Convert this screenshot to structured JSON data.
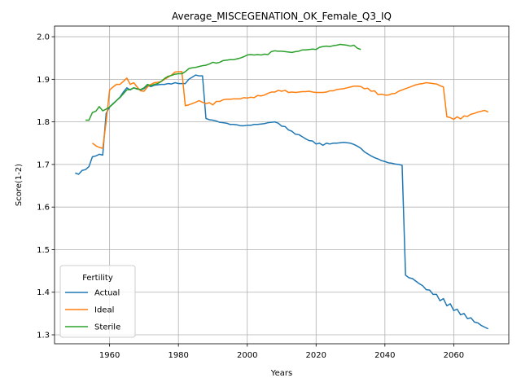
{
  "chart_data": {
    "type": "line",
    "title": "Average_MISCEGENATION_OK_Female_Q3_IQ",
    "xlabel": "Years",
    "ylabel": "Score(1-2)",
    "x": [
      1950,
      1951,
      1952,
      1953,
      1954,
      1955,
      1956,
      1957,
      1958,
      1959,
      1960,
      1961,
      1962,
      1963,
      1964,
      1965,
      1966,
      1967,
      1968,
      1969,
      1970,
      1971,
      1972,
      1973,
      1974,
      1975,
      1976,
      1977,
      1978,
      1979,
      1980,
      1981,
      1982,
      1983,
      1984,
      1985,
      1986,
      1987,
      1988,
      1989,
      1990,
      1991,
      1992,
      1993,
      1994,
      1995,
      1996,
      1997,
      1998,
      1999,
      2000,
      2001,
      2002,
      2003,
      2004,
      2005,
      2006,
      2007,
      2008,
      2009,
      2010,
      2011,
      2012,
      2013,
      2014,
      2015,
      2016,
      2017,
      2018,
      2019,
      2020,
      2021,
      2022,
      2023,
      2024,
      2025,
      2026,
      2027,
      2028,
      2029,
      2030,
      2031,
      2032,
      2033,
      2034,
      2035,
      2036,
      2037,
      2038,
      2039,
      2040,
      2041,
      2042,
      2043,
      2044,
      2045,
      2046,
      2047,
      2048,
      2049,
      2050,
      2051,
      2052,
      2053,
      2054,
      2055,
      2056,
      2057,
      2058,
      2059,
      2060,
      2061,
      2062,
      2063,
      2064,
      2065,
      2066,
      2067,
      2068,
      2069,
      2070
    ],
    "series": [
      {
        "name": "Actual",
        "color": "#1f77b4",
        "values": [
          1.68,
          1.677,
          1.686,
          1.688,
          1.695,
          1.718,
          1.72,
          1.724,
          1.722,
          1.82,
          1.835,
          1.843,
          1.85,
          1.858,
          1.87,
          1.88,
          1.875,
          1.88,
          1.878,
          1.875,
          1.878,
          1.885,
          1.883,
          1.886,
          1.887,
          1.888,
          1.888,
          1.89,
          1.889,
          1.892,
          1.89,
          1.89,
          1.89,
          1.9,
          1.905,
          1.91,
          1.908,
          1.908,
          1.808,
          1.805,
          1.804,
          1.802,
          1.799,
          1.798,
          1.797,
          1.794,
          1.794,
          1.793,
          1.791,
          1.791,
          1.792,
          1.792,
          1.794,
          1.794,
          1.795,
          1.796,
          1.798,
          1.799,
          1.8,
          1.797,
          1.79,
          1.789,
          1.781,
          1.778,
          1.771,
          1.77,
          1.765,
          1.76,
          1.756,
          1.755,
          1.748,
          1.75,
          1.745,
          1.75,
          1.748,
          1.75,
          1.75,
          1.751,
          1.752,
          1.751,
          1.75,
          1.747,
          1.743,
          1.738,
          1.73,
          1.725,
          1.72,
          1.716,
          1.713,
          1.709,
          1.707,
          1.704,
          1.703,
          1.701,
          1.7,
          1.698,
          1.44,
          1.434,
          1.432,
          1.426,
          1.42,
          1.415,
          1.406,
          1.405,
          1.395,
          1.395,
          1.38,
          1.385,
          1.368,
          1.373,
          1.357,
          1.36,
          1.347,
          1.35,
          1.338,
          1.34,
          1.33,
          1.328,
          1.322,
          1.318,
          1.314
        ]
      },
      {
        "name": "Ideal",
        "color": "#ff7f0e",
        "values": [
          null,
          null,
          null,
          null,
          null,
          1.75,
          1.744,
          1.74,
          1.738,
          1.8,
          1.875,
          1.882,
          1.888,
          1.888,
          1.895,
          1.903,
          1.888,
          1.892,
          1.882,
          1.873,
          1.872,
          1.882,
          1.888,
          1.892,
          1.893,
          1.895,
          1.9,
          1.905,
          1.91,
          1.917,
          1.918,
          1.918,
          1.838,
          1.84,
          1.843,
          1.846,
          1.85,
          1.846,
          1.843,
          1.845,
          1.84,
          1.848,
          1.848,
          1.852,
          1.853,
          1.853,
          1.854,
          1.854,
          1.854,
          1.857,
          1.856,
          1.858,
          1.857,
          1.862,
          1.861,
          1.863,
          1.867,
          1.87,
          1.87,
          1.874,
          1.872,
          1.874,
          1.869,
          1.87,
          1.869,
          1.87,
          1.871,
          1.871,
          1.872,
          1.87,
          1.869,
          1.869,
          1.869,
          1.87,
          1.873,
          1.873,
          1.876,
          1.877,
          1.878,
          1.88,
          1.882,
          1.884,
          1.884,
          1.883,
          1.878,
          1.879,
          1.872,
          1.873,
          1.864,
          1.865,
          1.863,
          1.863,
          1.866,
          1.867,
          1.872,
          1.875,
          1.878,
          1.881,
          1.884,
          1.887,
          1.889,
          1.89,
          1.892,
          1.891,
          1.89,
          1.889,
          1.885,
          1.882,
          1.812,
          1.81,
          1.806,
          1.812,
          1.807,
          1.814,
          1.813,
          1.818,
          1.82,
          1.823,
          1.825,
          1.827,
          1.823
        ]
      },
      {
        "name": "Sterile",
        "color": "#2ca02c",
        "values": [
          null,
          null,
          null,
          1.804,
          1.804,
          1.822,
          1.825,
          1.836,
          1.826,
          1.83,
          1.835,
          1.842,
          1.85,
          1.857,
          1.866,
          1.875,
          1.876,
          1.88,
          1.877,
          1.876,
          1.88,
          1.888,
          1.885,
          1.888,
          1.89,
          1.895,
          1.902,
          1.907,
          1.909,
          1.912,
          1.913,
          1.913,
          1.918,
          1.925,
          1.927,
          1.928,
          1.93,
          1.932,
          1.933,
          1.936,
          1.94,
          1.938,
          1.94,
          1.944,
          1.945,
          1.946,
          1.946,
          1.948,
          1.95,
          1.953,
          1.957,
          1.958,
          1.957,
          1.958,
          1.957,
          1.959,
          1.958,
          1.965,
          1.967,
          1.966,
          1.966,
          1.965,
          1.964,
          1.963,
          1.965,
          1.966,
          1.969,
          1.969,
          1.97,
          1.971,
          1.97,
          1.975,
          1.977,
          1.978,
          1.977,
          1.979,
          1.98,
          1.982,
          1.981,
          1.98,
          1.978,
          1.98,
          1.973,
          1.97,
          null,
          null,
          null,
          null,
          null,
          null,
          null,
          null,
          null,
          null,
          null,
          null,
          null,
          null,
          null,
          null,
          null,
          null,
          null,
          null,
          null,
          null,
          null,
          null,
          null,
          null,
          null,
          null,
          null,
          null,
          null,
          null,
          null,
          null,
          null,
          null,
          null
        ]
      }
    ],
    "xlim": [
      1944,
      2076
    ],
    "xticks": [
      1960,
      1980,
      2000,
      2020,
      2040,
      2060
    ],
    "ylim": [
      1.279,
      2.025
    ],
    "yticks": [
      1.3,
      1.4,
      1.5,
      1.6,
      1.7,
      1.8,
      1.9,
      {
        "value": 2,
        "label": "2.0"
      }
    ],
    "grid": true,
    "legend_title": "Fertility",
    "legend": "lower left"
  }
}
